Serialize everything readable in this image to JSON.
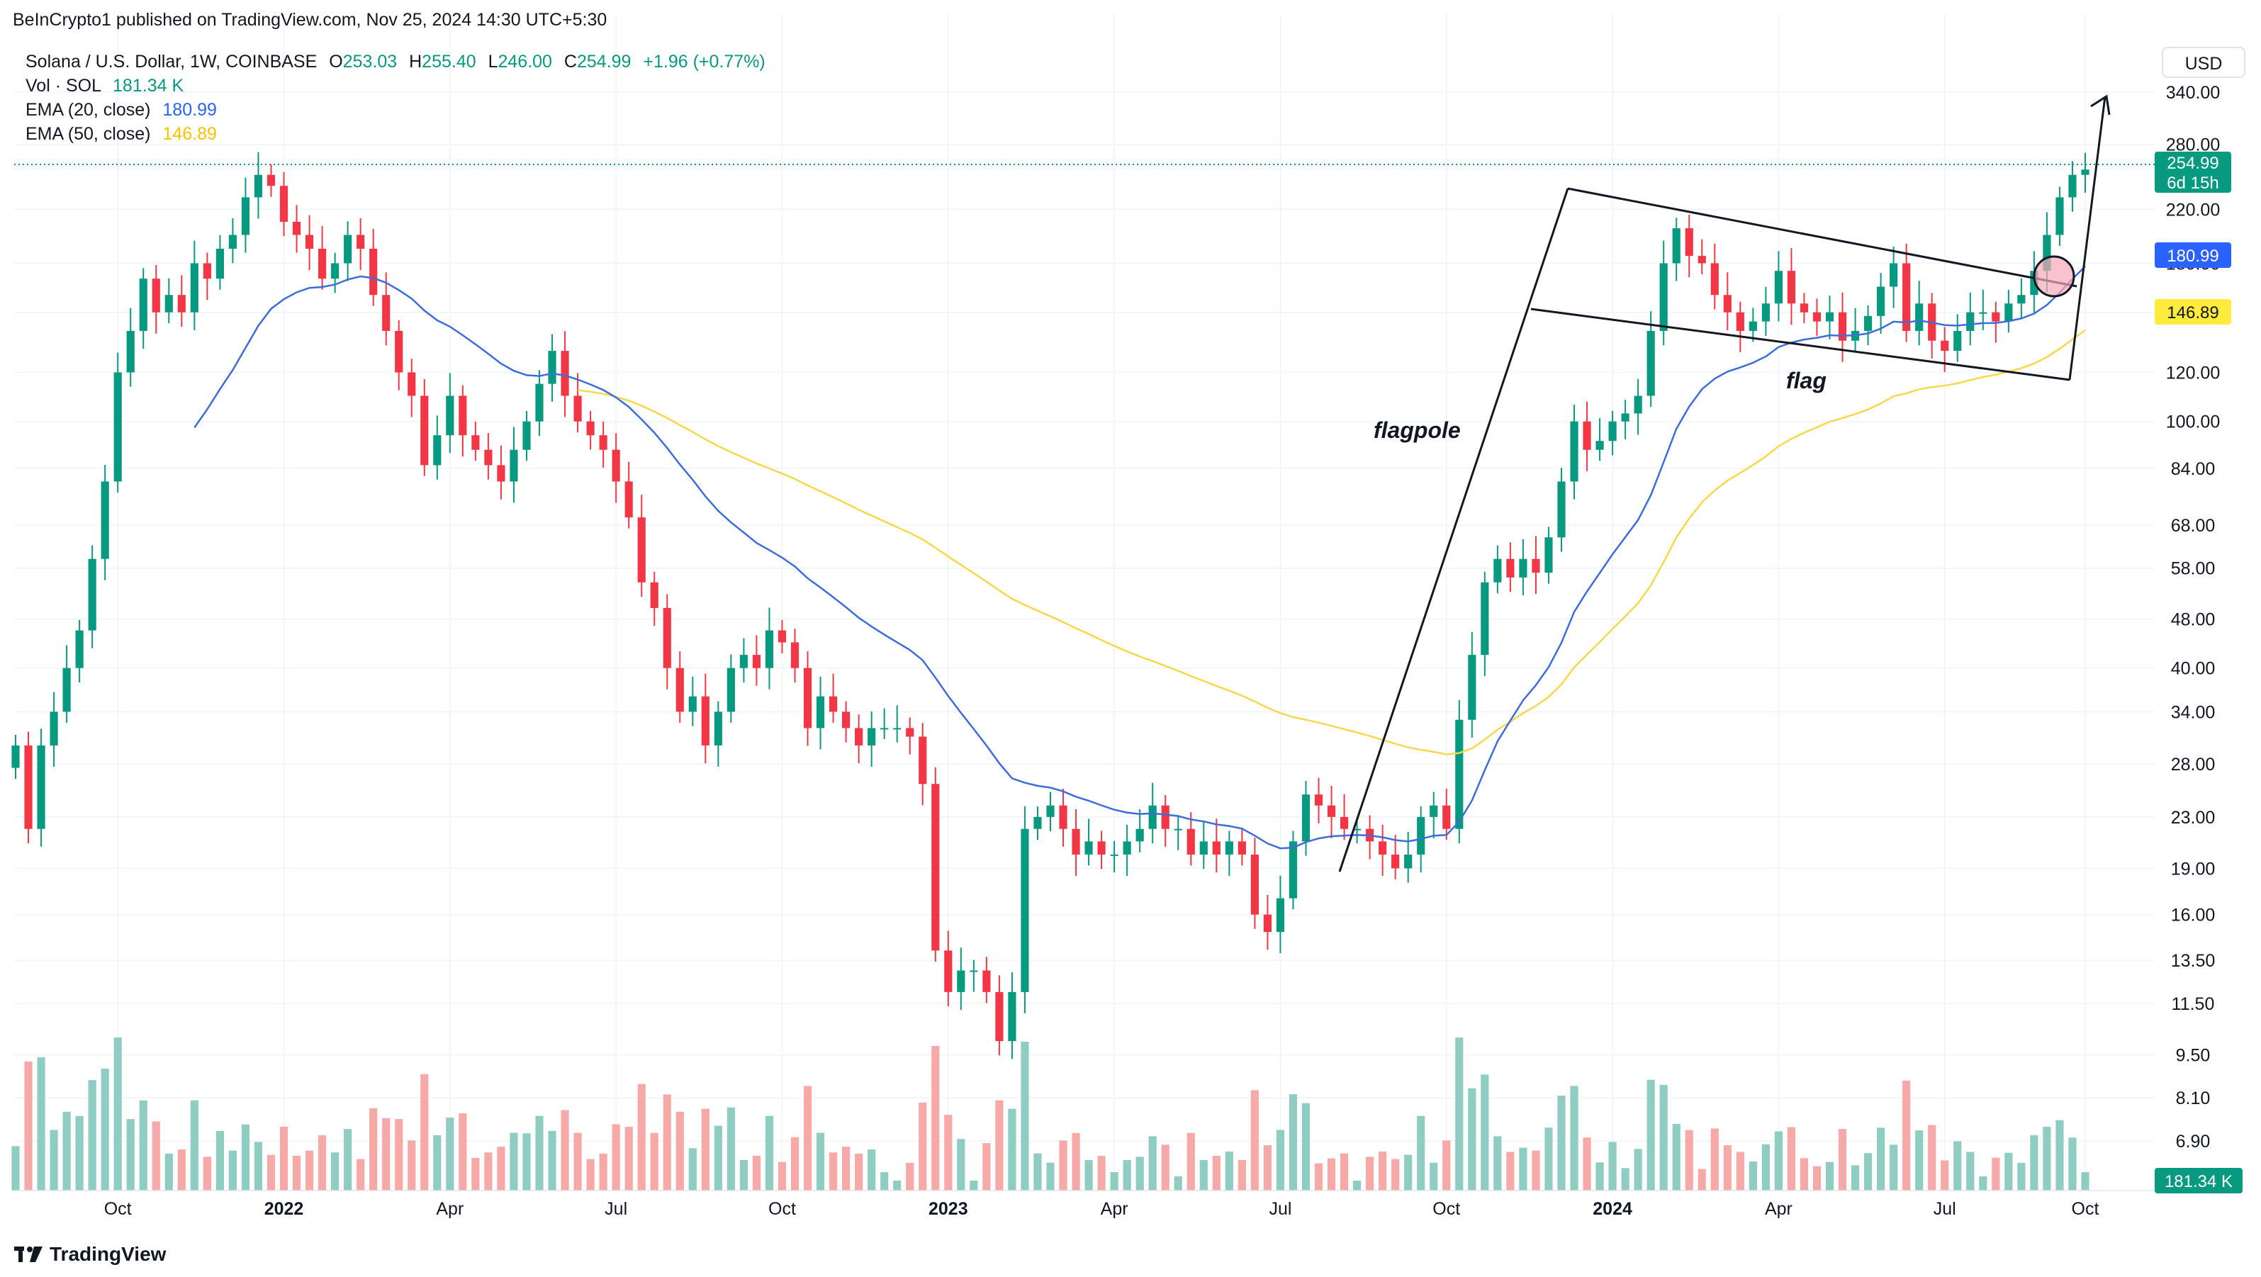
{
  "header": {
    "published": "BeInCrypto1 published on TradingView.com, Nov 25, 2024 14:30 UTC+5:30"
  },
  "legend": {
    "symbol": "Solana / U.S. Dollar, 1W, COINBASE",
    "open_label": "O",
    "open": "253.03",
    "high_label": "H",
    "high": "255.40",
    "low_label": "L",
    "low": "246.00",
    "close_label": "C",
    "close": "254.99",
    "change": "+1.96 (+0.77%)",
    "vol_label": "Vol · SOL",
    "vol": "181.34 K",
    "ema20_label": "EMA (20, close)",
    "ema20": "180.99",
    "ema50_label": "EMA (50, close)",
    "ema50": "146.89"
  },
  "currency_button": "USD",
  "footer": {
    "brand": "TradingView"
  },
  "colors": {
    "up": "#089981",
    "down": "#f23645",
    "ema20": "#2962ff",
    "ema50": "#f7c300",
    "vol_up": "#8fcdc3",
    "vol_down": "#f7a9a7"
  },
  "chart_data": {
    "type": "candlestick",
    "title": "Solana / U.S. Dollar, 1W, COINBASE",
    "y_scale": "log",
    "y_ticks": [
      "340.00",
      "280.00",
      "220.00",
      "180.00",
      "150.00",
      "120.00",
      "100.00",
      "84.00",
      "68.00",
      "58.00",
      "48.00",
      "40.00",
      "34.00",
      "28.00",
      "23.00",
      "19.00",
      "16.00",
      "13.50",
      "11.50",
      "9.50",
      "8.10",
      "6.90"
    ],
    "x_ticks": [
      "Oct",
      "2022",
      "Apr",
      "Jul",
      "Oct",
      "2023",
      "Apr",
      "Jul",
      "Oct",
      "2024",
      "Apr",
      "Jul",
      "Oct"
    ],
    "price_labels": {
      "last": "254.99",
      "countdown": "6d 15h",
      "ema20": "180.99",
      "ema50": "146.89",
      "volume": "181.34 K"
    },
    "annotations": [
      "flagpole",
      "flag"
    ],
    "series": [
      {
        "name": "SOL/USD",
        "closes": [
          30,
          22,
          30,
          34,
          40,
          46,
          60,
          80,
          120,
          140,
          170,
          150,
          160,
          150,
          180,
          170,
          190,
          200,
          230,
          250,
          240,
          210,
          200,
          190,
          170,
          180,
          200,
          190,
          160,
          140,
          120,
          110,
          85,
          95,
          110,
          95,
          90,
          85,
          80,
          90,
          100,
          115,
          130,
          110,
          100,
          95,
          90,
          80,
          70,
          55,
          50,
          40,
          34,
          36,
          30,
          34,
          40,
          42,
          40,
          46,
          44,
          40,
          32,
          36,
          34,
          32,
          30,
          32,
          32,
          32,
          31,
          26,
          14,
          12,
          13,
          13,
          12,
          10,
          12,
          22,
          23,
          24,
          22,
          20,
          21,
          20,
          20,
          21,
          22,
          24,
          22,
          22,
          20,
          21,
          20,
          21,
          20,
          16,
          15,
          17,
          21,
          25,
          24,
          23,
          22,
          22,
          21,
          20,
          19,
          20,
          23,
          24,
          22,
          33,
          42,
          55,
          60,
          56,
          60,
          57,
          65,
          80,
          100,
          90,
          93,
          100,
          103,
          110,
          140,
          180,
          205,
          185,
          180,
          160,
          150,
          140,
          145,
          155,
          175,
          155,
          150,
          145,
          150,
          135,
          140,
          148,
          165,
          180,
          140,
          155,
          135,
          130,
          140,
          150,
          150,
          145,
          155,
          160,
          175,
          200,
          230,
          250,
          254.99
        ]
      },
      {
        "name": "EMA (20, close)",
        "last": 180.99
      },
      {
        "name": "EMA (50, close)",
        "last": 146.89
      }
    ]
  }
}
